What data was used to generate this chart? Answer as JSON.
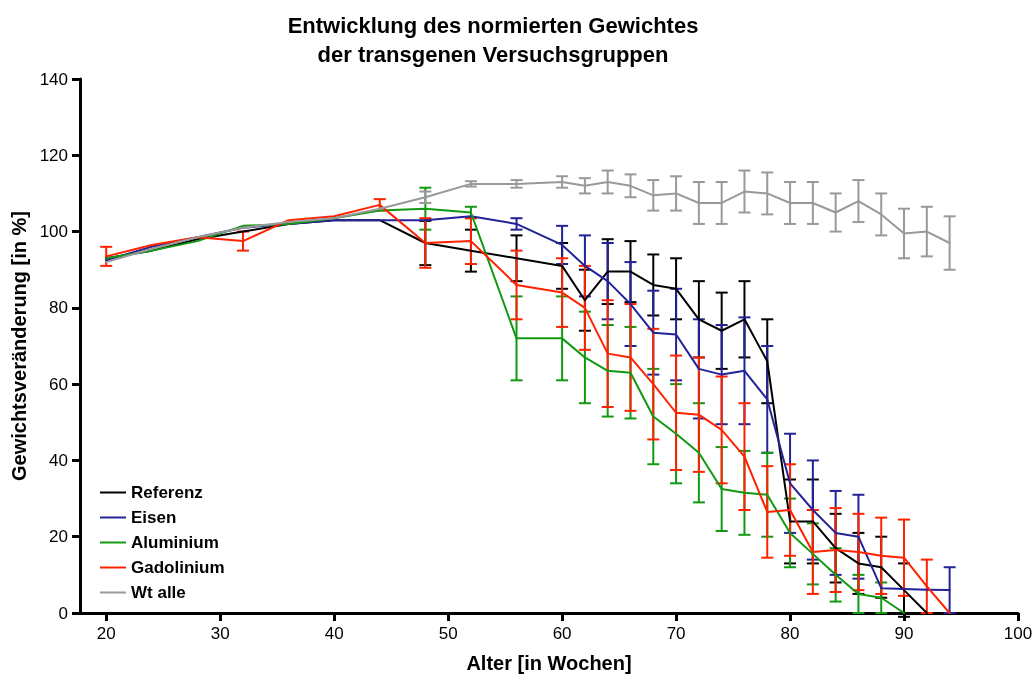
{
  "chart_data": {
    "type": "line",
    "title": "Entwicklung des normierten Gewichtes\nder transgenen Versuchsgruppen",
    "xlabel": "Alter [in Wochen]",
    "ylabel": "Gewichtsveränderung [in %]",
    "xlim": [
      17.7,
      100
    ],
    "xticks": [
      20,
      30,
      40,
      50,
      60,
      70,
      80,
      90,
      100
    ],
    "ylim": [
      0,
      140
    ],
    "yticks": [
      0,
      20,
      40,
      60,
      80,
      100,
      120,
      140
    ],
    "grid": false,
    "legend": "bottom left",
    "marker": "none",
    "line_style": "solid",
    "series": [
      {
        "name": "Referenz",
        "color": "#000000",
        "x": [
          20,
          24,
          28,
          32,
          36,
          40,
          44,
          48,
          52,
          56,
          60,
          62,
          64,
          66,
          68,
          70,
          72,
          74,
          76,
          78,
          80,
          82,
          84,
          86,
          88,
          90,
          92
        ],
        "values": [
          93,
          95,
          98,
          100,
          102,
          103,
          103,
          97,
          95,
          93,
          91,
          82,
          89.5,
          89.5,
          86,
          85,
          77,
          74,
          77,
          66,
          24,
          24,
          17,
          13,
          12,
          6,
          0
        ],
        "errors": [
          null,
          null,
          null,
          null,
          null,
          null,
          null,
          5.8,
          5.5,
          6,
          6,
          8,
          8.5,
          8,
          8,
          8,
          10,
          10,
          10,
          11,
          11,
          11,
          9,
          8,
          8,
          7,
          null
        ]
      },
      {
        "name": "Eisen",
        "color": "#222299",
        "x": [
          20,
          24,
          28,
          32,
          36,
          40,
          44,
          48,
          52,
          56,
          60,
          62,
          64,
          66,
          68,
          70,
          72,
          74,
          76,
          78,
          80,
          82,
          84,
          86,
          88,
          90,
          92,
          94
        ],
        "values": [
          92.5,
          96,
          98.5,
          101,
          102,
          103,
          103,
          103,
          104,
          102,
          96.5,
          91,
          87,
          81,
          73.5,
          73,
          64,
          62.5,
          63.5,
          56,
          34,
          27,
          21,
          20,
          6.5,
          6.3,
          6.1,
          6
        ],
        "errors": [
          null,
          null,
          null,
          null,
          null,
          null,
          null,
          null,
          null,
          1.5,
          5,
          8,
          10,
          11,
          11,
          12,
          13,
          13,
          14,
          14,
          13,
          13,
          11,
          11,
          null,
          null,
          null,
          6
        ]
      },
      {
        "name": "Aluminium",
        "color": "#119911",
        "x": [
          20,
          24,
          28,
          32,
          36,
          40,
          44,
          48,
          52,
          56,
          60,
          62,
          64,
          66,
          68,
          70,
          72,
          74,
          76,
          78,
          80,
          82,
          84,
          86,
          88,
          90
        ],
        "values": [
          93,
          95,
          97.5,
          101.5,
          102,
          103.5,
          105.5,
          106,
          105,
          72,
          72,
          67,
          63.5,
          63,
          51.5,
          47,
          42,
          32.5,
          31.5,
          31,
          21,
          15.5,
          10,
          5,
          4,
          0
        ],
        "errors": [
          null,
          null,
          null,
          null,
          null,
          null,
          null,
          5.5,
          1.5,
          11,
          11,
          12,
          12,
          12,
          12.5,
          13,
          13,
          11,
          11,
          11,
          9,
          8,
          7,
          5,
          4,
          null
        ]
      },
      {
        "name": "Gadolinium",
        "color": "#ff2200",
        "x": [
          20,
          24,
          28,
          32,
          36,
          40,
          44,
          48,
          52,
          56,
          60,
          62,
          64,
          66,
          68,
          70,
          72,
          74,
          76,
          78,
          80,
          82,
          84,
          86,
          88,
          90,
          92,
          94
        ],
        "values": [
          93.5,
          96.5,
          98.5,
          97.5,
          103,
          104,
          107,
          97,
          97.5,
          86,
          84,
          80,
          68,
          67,
          60,
          52.5,
          52,
          48,
          41,
          26.5,
          27,
          16,
          16.5,
          16,
          15,
          14.5,
          7,
          0
        ],
        "errors": [
          2.5,
          null,
          null,
          2.5,
          null,
          null,
          1.5,
          6.5,
          6,
          9,
          9,
          11,
          14,
          14,
          14.5,
          15,
          15,
          14,
          14,
          12,
          12,
          11,
          11,
          10,
          10,
          10,
          7,
          null
        ]
      },
      {
        "name": "Wt alle",
        "color": "#999999",
        "x": [
          20,
          24,
          28,
          32,
          36,
          40,
          44,
          48,
          52,
          56,
          60,
          62,
          64,
          66,
          68,
          70,
          72,
          74,
          76,
          78,
          80,
          82,
          84,
          86,
          88,
          90,
          92,
          94
        ],
        "values": [
          92,
          95.5,
          98.5,
          101,
          102.5,
          103.5,
          106,
          109,
          112.5,
          112.5,
          113,
          112,
          113,
          112,
          109.5,
          110,
          107.5,
          107.5,
          110.5,
          110,
          107.5,
          107.5,
          105,
          108,
          104.5,
          99.5,
          100,
          97
        ],
        "errors": [
          null,
          null,
          null,
          null,
          null,
          null,
          null,
          1.5,
          0.7,
          1,
          1.5,
          2,
          3,
          3,
          4,
          4.5,
          5.5,
          5.5,
          5.5,
          5.5,
          5.5,
          5.5,
          5,
          5.5,
          5.5,
          6.5,
          6.5,
          7
        ]
      }
    ]
  }
}
